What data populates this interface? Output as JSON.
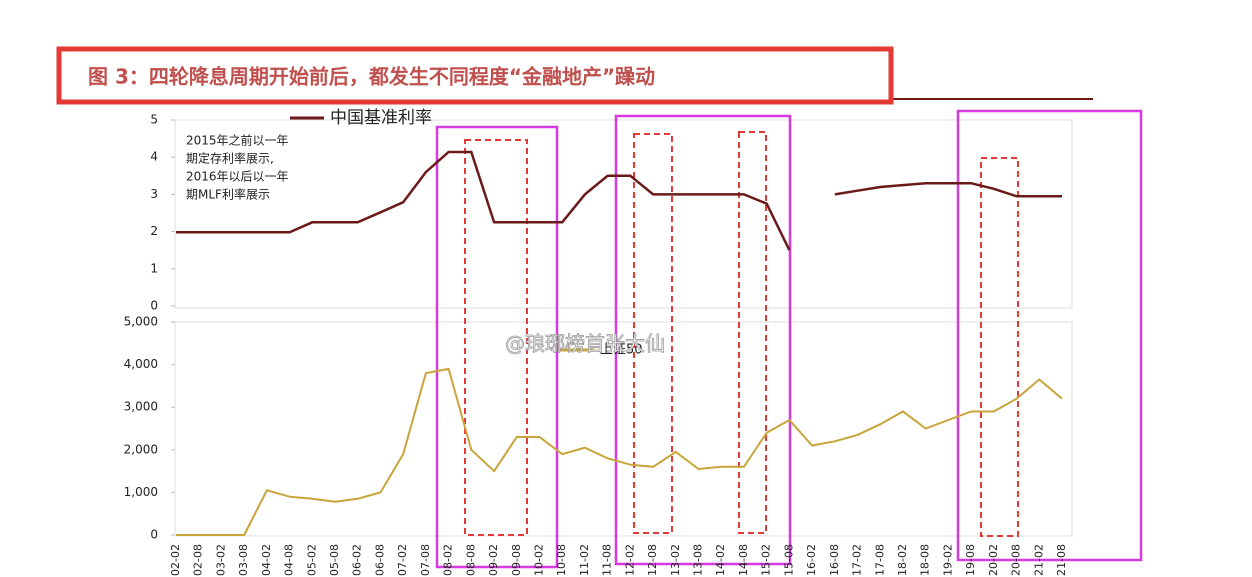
{
  "title": "图 3：四轮降息周期开始前后，都发生不同程度“金融地产”躁动",
  "watermark": "@琅琊榜首张大仙",
  "chart_data": [
    {
      "type": "line",
      "annotation": [
        "2015年之前以一年",
        "期定存利率展示,",
        "2016年以后以一年",
        "期MLF利率展示"
      ],
      "categories": [
        "02-02",
        "02-08",
        "03-02",
        "03-08",
        "04-02",
        "04-08",
        "05-02",
        "05-08",
        "06-02",
        "06-08",
        "07-02",
        "07-08",
        "08-02",
        "08-08",
        "09-02",
        "09-08",
        "10-02",
        "10-08",
        "11-02",
        "11-08",
        "12-02",
        "12-08",
        "13-02",
        "13-08",
        "14-02",
        "14-08",
        "15-02",
        "15-08",
        "16-02",
        "16-08",
        "17-02",
        "17-08",
        "18-02",
        "18-08",
        "19-02",
        "19-08",
        "20-02",
        "20-08",
        "21-02",
        "21-08"
      ],
      "series": [
        {
          "name": "中国基准利率",
          "color": "#6b1a1a",
          "values": [
            1.98,
            1.98,
            1.98,
            1.98,
            1.98,
            1.98,
            2.25,
            2.25,
            2.25,
            2.52,
            2.79,
            3.6,
            4.14,
            4.14,
            2.25,
            2.25,
            2.25,
            2.25,
            3.0,
            3.5,
            3.5,
            3.0,
            3.0,
            3.0,
            3.0,
            3.0,
            2.75,
            1.5,
            null,
            3.0,
            3.1,
            3.2,
            3.25,
            3.3,
            3.3,
            3.3,
            3.15,
            2.95,
            2.95,
            2.95
          ]
        }
      ],
      "ylim": [
        0,
        5
      ],
      "yticks": [
        0,
        1,
        2,
        3,
        4,
        5
      ]
    },
    {
      "type": "line",
      "categories": [
        "02-02",
        "02-08",
        "03-02",
        "03-08",
        "04-02",
        "04-08",
        "05-02",
        "05-08",
        "06-02",
        "06-08",
        "07-02",
        "07-08",
        "08-02",
        "08-08",
        "09-02",
        "09-08",
        "10-02",
        "10-08",
        "11-02",
        "11-08",
        "12-02",
        "12-08",
        "13-02",
        "13-08",
        "14-02",
        "14-08",
        "15-02",
        "15-08",
        "16-02",
        "16-08",
        "17-02",
        "17-08",
        "18-02",
        "18-08",
        "19-02",
        "19-08",
        "20-02",
        "20-08",
        "21-02",
        "21-08"
      ],
      "series": [
        {
          "name": "上证50",
          "color": "#c8a43a",
          "values": [
            0,
            0,
            0,
            0,
            1050,
            900,
            850,
            780,
            850,
            1000,
            1900,
            3800,
            3900,
            2000,
            1500,
            2300,
            2300,
            1900,
            2050,
            1800,
            1650,
            1600,
            1950,
            1550,
            1600,
            1600,
            2400,
            2700,
            2100,
            2200,
            2350,
            2600,
            2900,
            2500,
            2700,
            2900,
            2900,
            3200,
            3650,
            3200
          ]
        }
      ],
      "ylim": [
        0,
        5000
      ],
      "yticks": [
        0,
        {
          "value": 1000,
          "label": "1,000"
        },
        {
          "value": 2000,
          "label": "2,000"
        },
        {
          "value": 3000,
          "label": "3,000"
        },
        {
          "value": 4000,
          "label": "4,000"
        },
        {
          "value": 5000,
          "label": "5,000"
        }
      ]
    }
  ]
}
